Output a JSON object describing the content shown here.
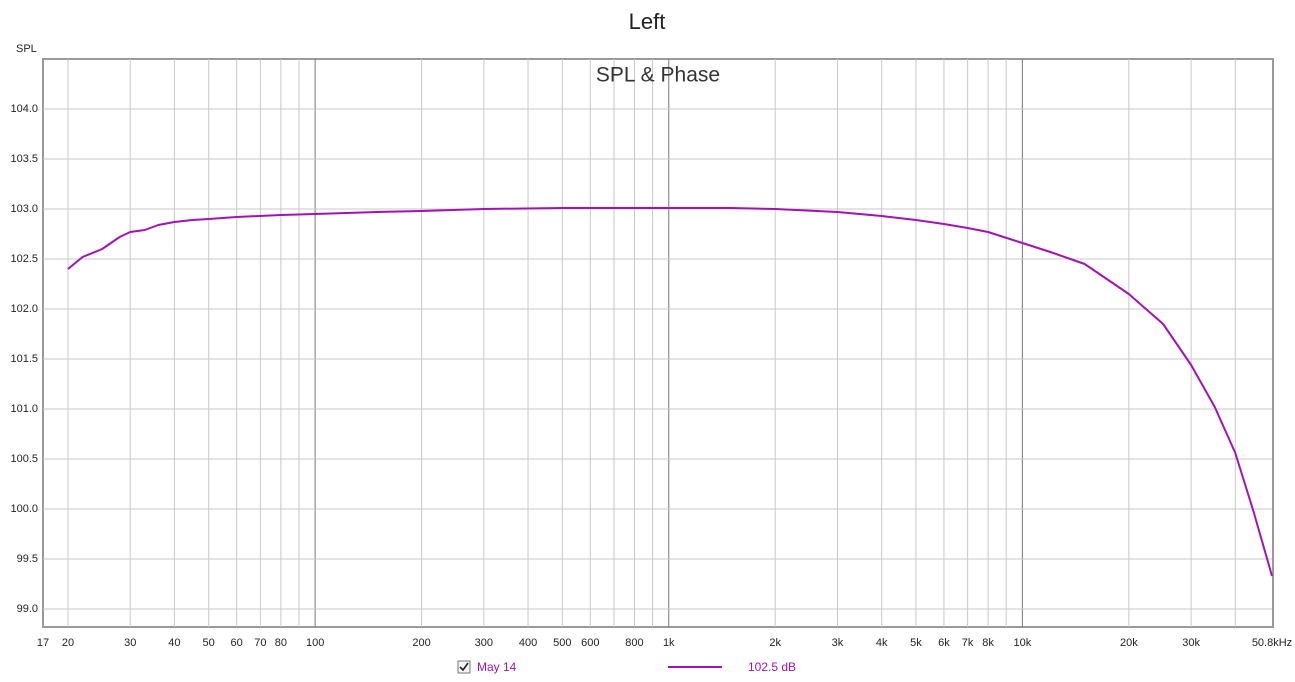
{
  "chart_data": {
    "type": "line",
    "title": "Left",
    "subtitle": "SPL & Phase",
    "y_label": "SPL",
    "log_x": true,
    "grid": true,
    "xlim": [
      17,
      50800
    ],
    "ylim": [
      98.82,
      104.5
    ],
    "xticks": [
      17,
      20,
      30,
      40,
      50,
      60,
      70,
      80,
      100,
      200,
      300,
      400,
      500,
      600,
      800,
      {
        "value": 1000,
        "label": "1k"
      },
      {
        "value": 2000,
        "label": "2k"
      },
      {
        "value": 3000,
        "label": "3k"
      },
      {
        "value": 4000,
        "label": "4k"
      },
      {
        "value": 5000,
        "label": "5k"
      },
      {
        "value": 6000,
        "label": "6k"
      },
      {
        "value": 7000,
        "label": "7k"
      },
      {
        "value": 8000,
        "label": "8k"
      },
      {
        "value": 10000,
        "label": "10k"
      },
      {
        "value": 20000,
        "label": "20k"
      },
      {
        "value": 30000,
        "label": "30k"
      },
      {
        "value": 50800,
        "label": "50.8kHz"
      }
    ],
    "xminor": [
      90,
      700,
      900,
      9000,
      40000
    ],
    "yticks": [
      {
        "value": 99.0,
        "label": "99.0"
      },
      99.5,
      {
        "value": 100.0,
        "label": "100.0"
      },
      100.5,
      {
        "value": 101.0,
        "label": "101.0"
      },
      101.5,
      {
        "value": 102.0,
        "label": "102.0"
      },
      102.5,
      {
        "value": 103.0,
        "label": "103.0"
      },
      103.5,
      {
        "value": 104.0,
        "label": "104.0"
      }
    ],
    "x": [
      20,
      22,
      25,
      28,
      30,
      33,
      36,
      40,
      45,
      50,
      60,
      80,
      100,
      150,
      200,
      300,
      500,
      800,
      1000,
      1500,
      2000,
      3000,
      4000,
      5000,
      6000,
      7000,
      8000,
      10000,
      12000,
      15000,
      20000,
      25000,
      30000,
      35000,
      40000,
      45000,
      50800
    ],
    "series": [
      {
        "name": "May 14",
        "color": "#a213b5",
        "legend_value": "102.5 dB",
        "values": [
          102.4,
          102.52,
          102.6,
          102.72,
          102.77,
          102.79,
          102.84,
          102.87,
          102.89,
          102.9,
          102.92,
          102.94,
          102.95,
          102.97,
          102.98,
          103.0,
          103.01,
          103.01,
          103.01,
          103.01,
          103.0,
          102.97,
          102.93,
          102.89,
          102.85,
          102.81,
          102.77,
          102.66,
          102.57,
          102.45,
          102.15,
          101.85,
          101.44,
          101.02,
          100.56,
          99.98,
          99.33
        ]
      }
    ]
  }
}
